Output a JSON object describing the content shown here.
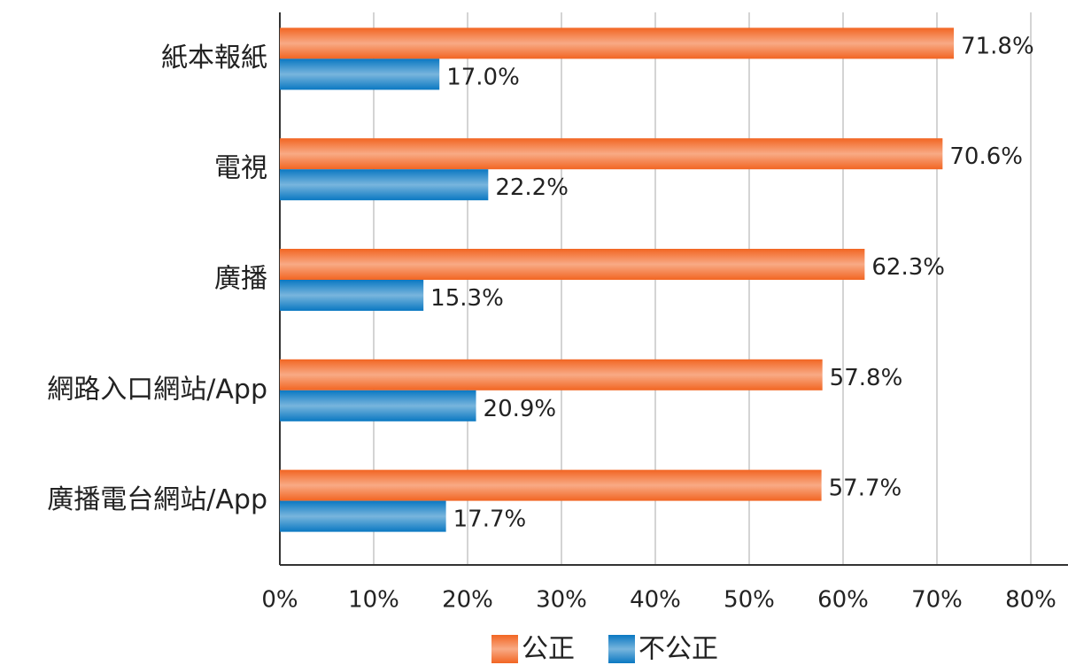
{
  "chart_data": {
    "type": "bar",
    "orientation": "horizontal",
    "categories": [
      "紙本報紙",
      "電視",
      "廣播",
      "網路入口網站/App",
      "廣播電台網站/App"
    ],
    "series": [
      {
        "name": "公正",
        "color": "#f26522",
        "values": [
          71.8,
          70.6,
          62.3,
          57.8,
          57.7
        ],
        "value_labels": [
          "71.8%",
          "70.6%",
          "62.3%",
          "57.8%",
          "57.7%"
        ]
      },
      {
        "name": "不公正",
        "color": "#0a78c2",
        "values": [
          17.0,
          22.2,
          15.3,
          20.9,
          17.7
        ],
        "value_labels": [
          "17.0%",
          "22.2%",
          "15.3%",
          "20.9%",
          "17.7%"
        ]
      }
    ],
    "xlim": [
      0,
      80
    ],
    "xticks": [
      {
        "value": 0,
        "label": "0%"
      },
      {
        "value": 10,
        "label": "10%"
      },
      {
        "value": 20,
        "label": "20%"
      },
      {
        "value": 30,
        "label": "30%"
      },
      {
        "value": 40,
        "label": "40%"
      },
      {
        "value": 50,
        "label": "50%"
      },
      {
        "value": 60,
        "label": "60%"
      },
      {
        "value": 70,
        "label": "70%"
      },
      {
        "value": 80,
        "label": "80%"
      }
    ],
    "grid": true,
    "legend": "bottom"
  }
}
